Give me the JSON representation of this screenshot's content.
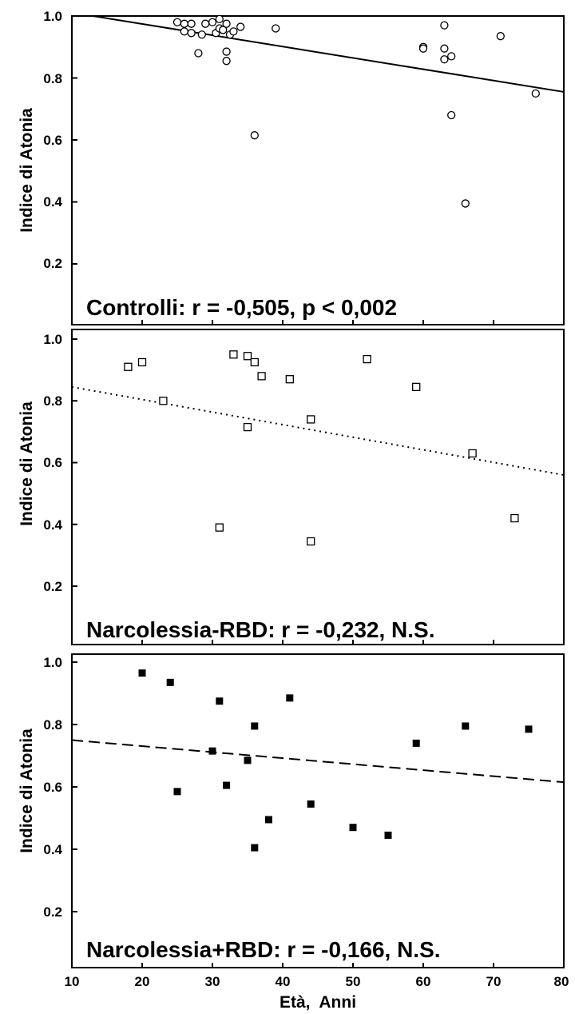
{
  "chart_data": [
    {
      "type": "scatter",
      "title": "",
      "annotation": "Controlli: r = -0,505, p < 0,002",
      "xlabel": "",
      "ylabel": "Indice di Atonia",
      "xlim": [
        10,
        80
      ],
      "ylim": [
        0.1,
        1.0
      ],
      "yticks": [
        "1.0",
        "0.8",
        "0.6",
        "0.4",
        "0.2"
      ],
      "grid": false,
      "marker": "open-circle",
      "fit_line": {
        "style": "solid",
        "x": [
          13,
          80
        ],
        "y": [
          1.0,
          0.755
        ]
      },
      "points": [
        {
          "x": 25,
          "y": 0.98
        },
        {
          "x": 26,
          "y": 0.975
        },
        {
          "x": 27,
          "y": 0.975
        },
        {
          "x": 26,
          "y": 0.95
        },
        {
          "x": 27,
          "y": 0.945
        },
        {
          "x": 29,
          "y": 0.975
        },
        {
          "x": 28,
          "y": 0.88
        },
        {
          "x": 28.5,
          "y": 0.94
        },
        {
          "x": 30,
          "y": 0.98
        },
        {
          "x": 30.5,
          "y": 0.945
        },
        {
          "x": 31,
          "y": 0.96
        },
        {
          "x": 31,
          "y": 0.99
        },
        {
          "x": 31.5,
          "y": 0.955
        },
        {
          "x": 32,
          "y": 0.975
        },
        {
          "x": 32,
          "y": 0.885
        },
        {
          "x": 32,
          "y": 0.855
        },
        {
          "x": 32.5,
          "y": 0.94
        },
        {
          "x": 33,
          "y": 0.95
        },
        {
          "x": 34,
          "y": 0.965
        },
        {
          "x": 36,
          "y": 0.615
        },
        {
          "x": 39,
          "y": 0.96
        },
        {
          "x": 60,
          "y": 0.9
        },
        {
          "x": 60,
          "y": 0.895
        },
        {
          "x": 63,
          "y": 0.97
        },
        {
          "x": 63,
          "y": 0.895
        },
        {
          "x": 63,
          "y": 0.86
        },
        {
          "x": 64,
          "y": 0.87
        },
        {
          "x": 64,
          "y": 0.68
        },
        {
          "x": 66,
          "y": 0.395
        },
        {
          "x": 71,
          "y": 0.935
        },
        {
          "x": 76,
          "y": 0.75
        }
      ]
    },
    {
      "type": "scatter",
      "title": "",
      "annotation": "Narcolessia-RBD: r = -0,232, N.S.",
      "xlabel": "",
      "ylabel": "Indice di Atonia",
      "xlim": [
        10,
        80
      ],
      "ylim": [
        0.1,
        1.0
      ],
      "yticks": [
        "1.0",
        "0.8",
        "0.6",
        "0.4",
        "0.2"
      ],
      "grid": false,
      "marker": "open-square",
      "fit_line": {
        "style": "dotted",
        "x": [
          10,
          80
        ],
        "y": [
          0.845,
          0.56
        ]
      },
      "points": [
        {
          "x": 18,
          "y": 0.91
        },
        {
          "x": 20,
          "y": 0.925
        },
        {
          "x": 23,
          "y": 0.8
        },
        {
          "x": 31,
          "y": 0.39
        },
        {
          "x": 33,
          "y": 0.95
        },
        {
          "x": 35,
          "y": 0.945
        },
        {
          "x": 35,
          "y": 0.715
        },
        {
          "x": 36,
          "y": 0.925
        },
        {
          "x": 37,
          "y": 0.88
        },
        {
          "x": 41,
          "y": 0.87
        },
        {
          "x": 44,
          "y": 0.74
        },
        {
          "x": 44,
          "y": 0.345
        },
        {
          "x": 52,
          "y": 0.935
        },
        {
          "x": 59,
          "y": 0.845
        },
        {
          "x": 67,
          "y": 0.63
        },
        {
          "x": 73,
          "y": 0.42
        }
      ]
    },
    {
      "type": "scatter",
      "title": "",
      "annotation": "Narcolessia+RBD: r = -0,166, N.S.",
      "xlabel": "Età,  Anni",
      "ylabel": "Indice di Atonia",
      "xlim": [
        10,
        80
      ],
      "ylim": [
        0.1,
        1.0
      ],
      "xticks": [
        "10",
        "20",
        "30",
        "40",
        "50",
        "60",
        "70",
        "80"
      ],
      "yticks": [
        "1.0",
        "0.8",
        "0.6",
        "0.4",
        "0.2"
      ],
      "grid": false,
      "marker": "filled-square",
      "fit_line": {
        "style": "dashed",
        "x": [
          10,
          80
        ],
        "y": [
          0.75,
          0.615
        ]
      },
      "points": [
        {
          "x": 20,
          "y": 0.965
        },
        {
          "x": 24,
          "y": 0.935
        },
        {
          "x": 25,
          "y": 0.585
        },
        {
          "x": 30,
          "y": 0.715
        },
        {
          "x": 31,
          "y": 0.875
        },
        {
          "x": 32,
          "y": 0.605
        },
        {
          "x": 35,
          "y": 0.685
        },
        {
          "x": 36,
          "y": 0.795
        },
        {
          "x": 36,
          "y": 0.405
        },
        {
          "x": 38,
          "y": 0.495
        },
        {
          "x": 41,
          "y": 0.885
        },
        {
          "x": 44,
          "y": 0.545
        },
        {
          "x": 50,
          "y": 0.47
        },
        {
          "x": 55,
          "y": 0.445
        },
        {
          "x": 59,
          "y": 0.74
        },
        {
          "x": 66,
          "y": 0.795
        },
        {
          "x": 75,
          "y": 0.785
        }
      ]
    }
  ]
}
